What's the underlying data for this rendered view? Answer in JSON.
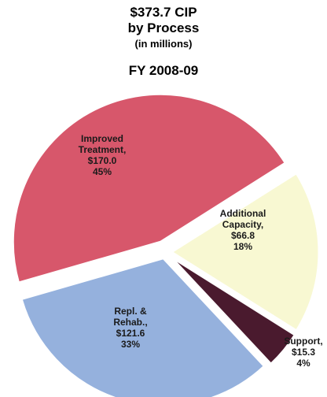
{
  "header": {
    "line1": "$373.7 CIP",
    "line2": "by Process",
    "line3": "(in millions)",
    "line4": "FY 2008-09"
  },
  "chart_data": {
    "type": "pie",
    "title": "$373.7 CIP by Process (in millions) FY 2008-09",
    "slices": [
      {
        "name": "Improved Treatment",
        "value": 170.0,
        "value_label": "$170.0",
        "percent": "45%",
        "color": "#d7576b"
      },
      {
        "name": "Additional Capacity",
        "value": 66.8,
        "value_label": "$66.8",
        "percent": "18%",
        "color": "#f8f8d2"
      },
      {
        "name": "Support",
        "value": 15.3,
        "value_label": "$15.3",
        "percent": "4%",
        "color": "#4a1a2e"
      },
      {
        "name": "Repl. & Rehab.",
        "value": 121.6,
        "value_label": "$121.6",
        "percent": "33%",
        "color": "#95b1dd"
      }
    ],
    "labels": {
      "improved": [
        "Improved",
        "Treatment,",
        "$170.0",
        "45%"
      ],
      "additional": [
        "Additional",
        "Capacity,",
        "$66.8",
        "18%"
      ],
      "support": [
        "Support,",
        "$15.3",
        "4%"
      ],
      "repl": [
        "Repl. &",
        "Rehab.,",
        "$121.6",
        "33%"
      ]
    }
  }
}
